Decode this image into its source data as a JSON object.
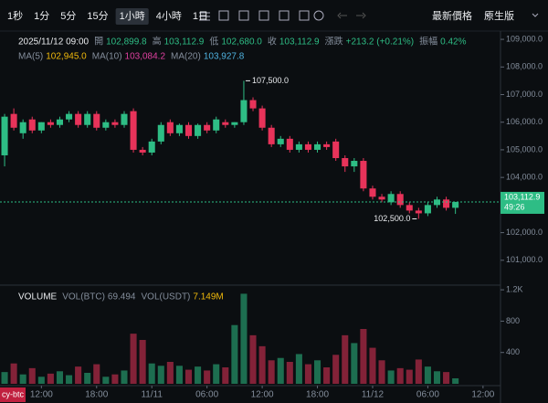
{
  "toolbar": {
    "intervals": [
      "1秒",
      "1分",
      "5分",
      "15分",
      "1小時",
      "4小時",
      "1日"
    ],
    "right": [
      "最新價格",
      "原生版"
    ]
  },
  "header": {
    "time": "2025/11/12 09:00",
    "items": [
      {
        "label": "開",
        "value": "102,899.8"
      },
      {
        "label": "高",
        "value": "103,112.9"
      },
      {
        "label": "低",
        "value": "102,680.0"
      },
      {
        "label": "收",
        "value": "103,112.9"
      },
      {
        "label": "漲跌",
        "value": "+213.2 (+0.21%)"
      },
      {
        "label": "振幅",
        "value": "0.42%"
      }
    ],
    "ma": [
      {
        "label": "MA(5)",
        "value": "102,945.0"
      },
      {
        "label": "MA(10)",
        "value": "103,084.2"
      },
      {
        "label": "MA(20)",
        "value": "103,927.8"
      }
    ],
    "volume": {
      "title": "VOLUME",
      "items": [
        {
          "label": "VOL(BTC)",
          "value": "69.494"
        },
        {
          "label": "VOL(USDT)",
          "value": "7.149M"
        }
      ]
    }
  },
  "chart_data": {
    "type": "candlestick",
    "symbol": "cy-btc",
    "open": [
      104800,
      106300,
      105600,
      106100,
      105700,
      106000,
      105900,
      106100,
      106300,
      105900,
      106300,
      105800,
      106000,
      105900,
      106400,
      105000,
      104900,
      105300,
      106000,
      105600,
      105900,
      105500,
      105900,
      105700,
      106000,
      105900,
      106000,
      106800,
      106500,
      105800,
      105200,
      105400,
      105000,
      105200,
      105000,
      105200,
      105300,
      104700,
      104400,
      104600,
      103600,
      103300,
      103100,
      103400,
      103000,
      102800,
      102700,
      103000,
      103200,
      102899.8
    ],
    "high": [
      106300,
      106500,
      106100,
      106200,
      106000,
      106100,
      106200,
      106400,
      106400,
      106400,
      106400,
      106100,
      106100,
      106400,
      106500,
      105100,
      105400,
      106000,
      106100,
      105950,
      106000,
      105950,
      106000,
      106200,
      106100,
      106000,
      107500,
      106900,
      106600,
      105900,
      105500,
      105500,
      105300,
      105300,
      105300,
      105300,
      105400,
      104800,
      104700,
      104700,
      103700,
      103400,
      103500,
      103500,
      103100,
      102900,
      103100,
      103300,
      103300,
      103112.9
    ],
    "low": [
      104400,
      105700,
      105400,
      105600,
      105600,
      105800,
      105800,
      106000,
      105800,
      105800,
      105700,
      105700,
      105800,
      105800,
      104900,
      104800,
      104800,
      105200,
      105500,
      105500,
      105400,
      105400,
      105600,
      105600,
      105800,
      105800,
      105900,
      106400,
      105700,
      105100,
      105100,
      104900,
      104900,
      104900,
      104900,
      105000,
      104600,
      104200,
      104200,
      103500,
      103200,
      103100,
      103000,
      102900,
      102700,
      102500,
      102600,
      102900,
      102800,
      102680
    ],
    "close": [
      106200,
      105800,
      106000,
      105700,
      106000,
      105900,
      106100,
      106300,
      105900,
      106300,
      105800,
      106000,
      105900,
      106300,
      105000,
      104900,
      105300,
      105900,
      105600,
      105900,
      105500,
      105900,
      105700,
      106100,
      105900,
      106000,
      106800,
      106500,
      105800,
      105200,
      105400,
      105000,
      105200,
      105000,
      105200,
      105100,
      104700,
      104400,
      104600,
      103600,
      103300,
      103200,
      103400,
      103000,
      102800,
      102700,
      103000,
      103200,
      102900,
      103112.9
    ],
    "volume": [
      150,
      260,
      120,
      200,
      90,
      130,
      160,
      110,
      220,
      140,
      250,
      90,
      120,
      170,
      640,
      560,
      260,
      230,
      280,
      230,
      180,
      220,
      170,
      250,
      210,
      750,
      1150,
      620,
      480,
      300,
      330,
      280,
      380,
      250,
      300,
      210,
      370,
      620,
      520,
      700,
      460,
      300,
      170,
      200,
      180,
      310,
      220,
      160,
      150,
      70
    ],
    "up_color": "#2ebd85",
    "down_color": "#e8335a",
    "xlim": [
      -0.5,
      53.9
    ],
    "xticks": [
      {
        "value": 4,
        "label": "12:00"
      },
      {
        "value": 10,
        "label": "18:00"
      },
      {
        "value": 16,
        "label": "11/11"
      },
      {
        "value": 22,
        "label": "06:00"
      },
      {
        "value": 28,
        "label": "12:00"
      },
      {
        "value": 34,
        "label": "18:00"
      },
      {
        "value": 40,
        "label": "11/12"
      },
      {
        "value": 46,
        "label": "06:00"
      },
      {
        "value": 52,
        "label": "12:00"
      }
    ],
    "ylim": [
      100100,
      109300
    ],
    "yticks": [
      {
        "value": 101000,
        "label": "101,000.0"
      },
      {
        "value": 102000,
        "label": "102,000.0"
      },
      {
        "value": 103000,
        "label": "103,000.0"
      },
      {
        "value": 104000,
        "label": "104,000.0"
      },
      {
        "value": 105000,
        "label": "105,000.0"
      },
      {
        "value": 106000,
        "label": "106,000.0"
      },
      {
        "value": 107000,
        "label": "107,000.0"
      },
      {
        "value": 108000,
        "label": "108,000.0"
      },
      {
        "value": 109000,
        "label": "109,000.0"
      }
    ],
    "vol_ylim": [
      0,
      1260
    ],
    "vol_yticks": [
      {
        "value": 400,
        "label": "400"
      },
      {
        "value": 800,
        "label": "800"
      },
      {
        "value": 1200,
        "label": "1.2K"
      }
    ],
    "high_label": {
      "value": 107500,
      "label": "107,500.0"
    },
    "low_label": {
      "value": 102500,
      "label": "102,500.0"
    },
    "last_price": {
      "value": 103112.9,
      "label": "103,112.9",
      "countdown": "49:26"
    }
  }
}
